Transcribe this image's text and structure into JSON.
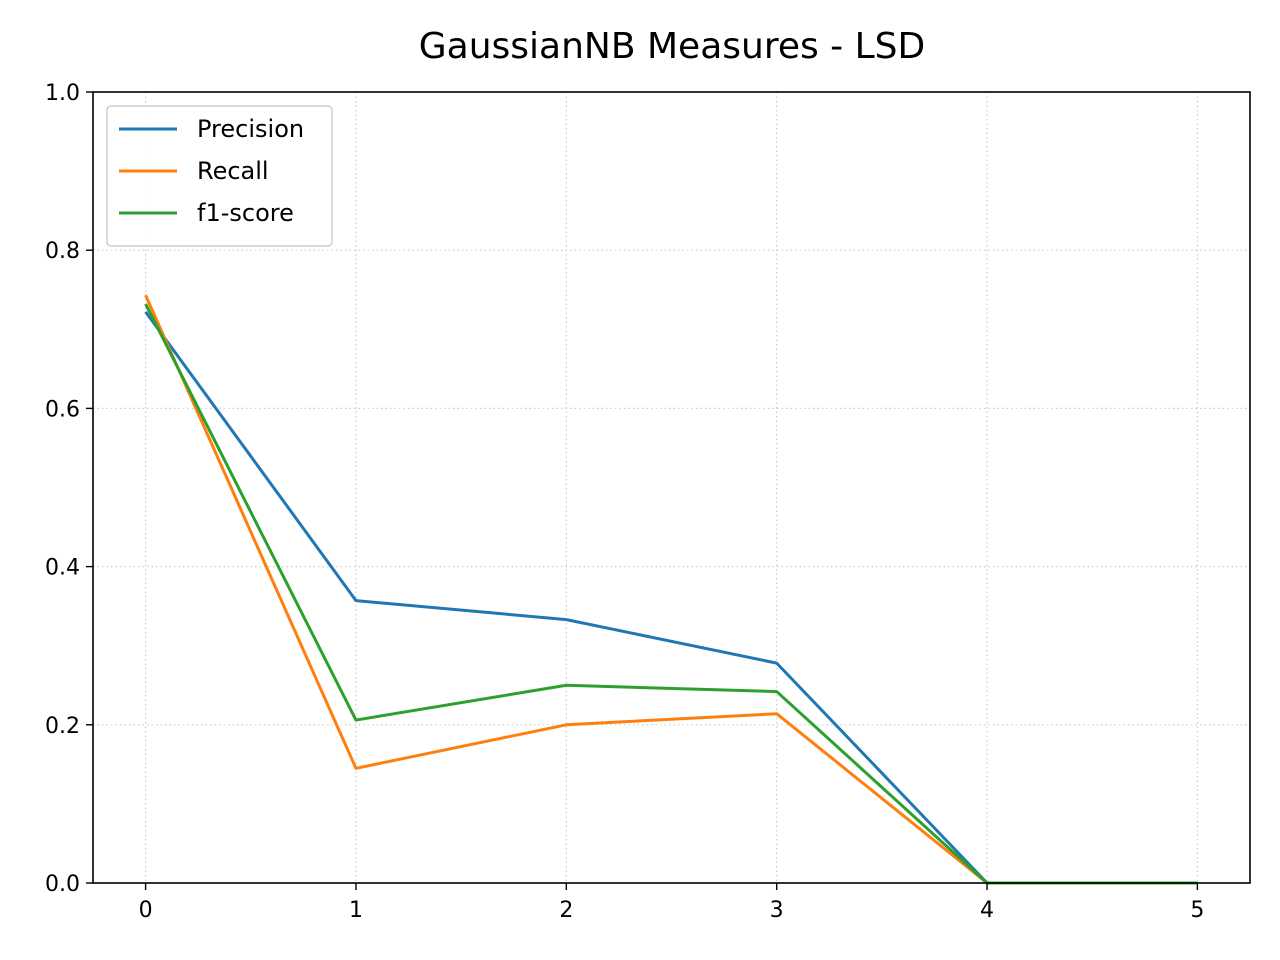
{
  "chart_data": {
    "type": "line",
    "title": "GaussianNB Measures - LSD",
    "xlabel": "",
    "ylabel": "",
    "x": [
      0,
      1,
      2,
      3,
      4,
      5
    ],
    "xticks": [
      "0",
      "1",
      "2",
      "3",
      "4",
      "5"
    ],
    "yticks": [
      "0.0",
      "0.2",
      "0.4",
      "0.6",
      "0.8",
      "1.0"
    ],
    "xlim": [
      -0.25,
      5.25
    ],
    "ylim": [
      0.0,
      1.0
    ],
    "grid": true,
    "grid_style": "dotted",
    "legend_position": "upper-left",
    "series": [
      {
        "name": "Precision",
        "color": "#1f77b4",
        "values": [
          0.722,
          0.357,
          0.333,
          0.278,
          0.0,
          0.0
        ]
      },
      {
        "name": "Recall",
        "color": "#ff7f0e",
        "values": [
          0.743,
          0.145,
          0.2,
          0.214,
          0.0,
          0.0
        ]
      },
      {
        "name": "f1-score",
        "color": "#2ca02c",
        "values": [
          0.732,
          0.206,
          0.25,
          0.242,
          0.0,
          0.0
        ]
      }
    ]
  }
}
